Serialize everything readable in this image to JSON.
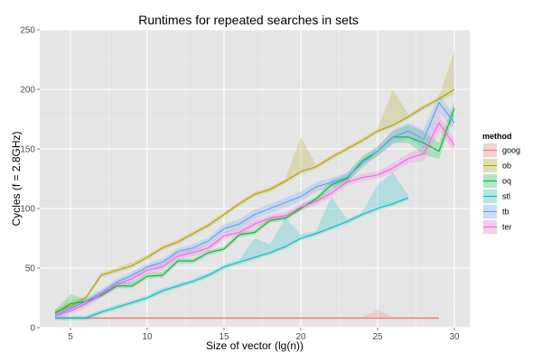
{
  "chart_data": {
    "type": "line",
    "title": "Runtimes for repeated searches in sets",
    "xlabel": "Size of vector (lg(n))",
    "ylabel": "Cycles (f = 2.8GHz)",
    "xlim": [
      3,
      31
    ],
    "ylim": [
      0,
      250
    ],
    "xticks": [
      5,
      10,
      15,
      20,
      25,
      30
    ],
    "yticks": [
      0,
      50,
      100,
      150,
      200,
      250
    ],
    "grid": true,
    "legend": {
      "title": "method",
      "position": "right"
    },
    "series": [
      {
        "name": "goog",
        "color": "#F8766D",
        "x": [
          4,
          5,
          6,
          7,
          8,
          9,
          10,
          11,
          12,
          13,
          14,
          15,
          16,
          17,
          18,
          19,
          20,
          21,
          22,
          23,
          24,
          25,
          26,
          27,
          28,
          29
        ],
        "y": [
          8,
          8,
          8,
          8,
          8,
          8,
          8,
          8,
          8,
          8,
          8,
          8,
          8,
          8,
          8,
          8,
          8,
          8,
          8,
          8,
          8,
          8,
          8,
          8,
          8,
          8
        ],
        "ymin": [
          7,
          7,
          7,
          7,
          7,
          7,
          7,
          7,
          7,
          7,
          7,
          7,
          7,
          7,
          7,
          7,
          7,
          7,
          7,
          7,
          7,
          7,
          7,
          7,
          7,
          7
        ],
        "ymax": [
          9,
          9,
          9,
          9,
          9,
          9,
          9,
          9,
          9,
          9,
          9,
          9,
          9,
          9,
          9,
          9,
          9,
          9,
          9,
          9,
          9,
          15,
          9,
          9,
          9,
          9
        ]
      },
      {
        "name": "ob",
        "color": "#B79F00",
        "x": [
          4,
          5,
          6,
          7,
          8,
          9,
          10,
          11,
          12,
          13,
          14,
          15,
          16,
          17,
          18,
          19,
          20,
          21,
          22,
          23,
          24,
          25,
          26,
          27,
          28,
          29,
          30
        ],
        "y": [
          13,
          18,
          25,
          44,
          48,
          52,
          59,
          67,
          72,
          79,
          86,
          95,
          104,
          112,
          116,
          123,
          131,
          135,
          143,
          150,
          157,
          165,
          170,
          177,
          185,
          192,
          200
        ],
        "ymin": [
          11,
          16,
          23,
          42,
          46,
          50,
          57,
          65,
          70,
          77,
          84,
          93,
          102,
          110,
          114,
          121,
          129,
          133,
          141,
          148,
          155,
          163,
          168,
          175,
          183,
          190,
          196
        ],
        "ymax": [
          15,
          22,
          27,
          46,
          50,
          55,
          61,
          69,
          74,
          81,
          88,
          97,
          106,
          114,
          118,
          125,
          160,
          137,
          145,
          152,
          159,
          167,
          200,
          179,
          187,
          194,
          232
        ]
      },
      {
        "name": "oq",
        "color": "#00BA38",
        "x": [
          4,
          5,
          6,
          7,
          8,
          9,
          10,
          11,
          12,
          13,
          14,
          15,
          16,
          17,
          18,
          19,
          20,
          21,
          22,
          23,
          24,
          25,
          26,
          27,
          28,
          29,
          30
        ],
        "y": [
          12,
          20,
          22,
          27,
          35,
          35,
          43,
          44,
          56,
          56,
          63,
          66,
          78,
          80,
          90,
          92,
          100,
          108,
          120,
          125,
          140,
          148,
          160,
          160,
          155,
          148,
          184
        ],
        "ymin": [
          9,
          17,
          20,
          25,
          33,
          33,
          41,
          42,
          54,
          54,
          61,
          64,
          76,
          78,
          88,
          90,
          98,
          106,
          116,
          121,
          136,
          144,
          155,
          155,
          145,
          142,
          178
        ],
        "ymax": [
          15,
          28,
          24,
          30,
          38,
          38,
          46,
          47,
          58,
          58,
          65,
          68,
          80,
          82,
          93,
          94,
          103,
          110,
          124,
          129,
          144,
          152,
          165,
          170,
          165,
          155,
          190
        ]
      },
      {
        "name": "stl",
        "color": "#00BFC4",
        "x": [
          4,
          5,
          6,
          7,
          8,
          9,
          10,
          11,
          12,
          13,
          14,
          15,
          16,
          17,
          18,
          19,
          20,
          21,
          22,
          23,
          24,
          25,
          26,
          27
        ],
        "y": [
          8,
          8,
          8,
          13,
          17,
          21,
          25,
          31,
          35,
          39,
          44,
          51,
          55,
          59,
          63,
          68,
          75,
          79,
          84,
          89,
          95,
          100,
          104,
          109
        ],
        "ymin": [
          6,
          6,
          6,
          11,
          15,
          19,
          23,
          29,
          33,
          37,
          42,
          49,
          53,
          57,
          61,
          66,
          73,
          77,
          82,
          87,
          93,
          98,
          102,
          107
        ],
        "ymax": [
          10,
          10,
          10,
          15,
          19,
          23,
          27,
          33,
          37,
          41,
          46,
          53,
          57,
          75,
          70,
          92,
          78,
          81,
          110,
          91,
          97,
          120,
          130,
          111
        ]
      },
      {
        "name": "tb",
        "color": "#619CFF",
        "x": [
          4,
          5,
          6,
          7,
          8,
          9,
          10,
          11,
          12,
          13,
          14,
          15,
          16,
          17,
          18,
          19,
          20,
          21,
          22,
          23,
          24,
          25,
          26,
          27,
          28,
          29,
          30
        ],
        "y": [
          10,
          16,
          22,
          29,
          38,
          44,
          51,
          55,
          64,
          67,
          73,
          83,
          87,
          95,
          100,
          105,
          110,
          118,
          122,
          126,
          138,
          148,
          160,
          165,
          158,
          189,
          172
        ],
        "ymin": [
          7,
          13,
          19,
          26,
          35,
          41,
          48,
          52,
          61,
          64,
          70,
          79,
          83,
          91,
          96,
          101,
          106,
          114,
          118,
          122,
          134,
          144,
          154,
          159,
          150,
          180,
          166
        ],
        "ymax": [
          13,
          19,
          25,
          32,
          41,
          47,
          54,
          58,
          67,
          70,
          76,
          87,
          91,
          99,
          104,
          109,
          114,
          122,
          126,
          130,
          142,
          152,
          166,
          172,
          166,
          196,
          178
        ]
      },
      {
        "name": "ter",
        "color": "#F564E3",
        "x": [
          4,
          5,
          6,
          7,
          8,
          9,
          10,
          11,
          12,
          13,
          14,
          15,
          16,
          17,
          18,
          19,
          20,
          21,
          22,
          23,
          24,
          25,
          26,
          27,
          28,
          29,
          30
        ],
        "y": [
          10,
          14,
          20,
          28,
          36,
          41,
          48,
          51,
          60,
          63,
          67,
          77,
          80,
          87,
          92,
          94,
          101,
          106,
          113,
          122,
          126,
          128,
          134,
          142,
          146,
          172,
          153
        ],
        "ymin": [
          7,
          11,
          17,
          25,
          33,
          38,
          45,
          48,
          57,
          60,
          64,
          74,
          77,
          84,
          89,
          91,
          98,
          103,
          110,
          119,
          123,
          125,
          130,
          138,
          140,
          165,
          148
        ],
        "ymax": [
          13,
          17,
          23,
          31,
          39,
          44,
          51,
          54,
          63,
          66,
          70,
          80,
          83,
          90,
          95,
          97,
          104,
          109,
          116,
          125,
          129,
          131,
          138,
          146,
          152,
          179,
          158
        ]
      }
    ]
  }
}
